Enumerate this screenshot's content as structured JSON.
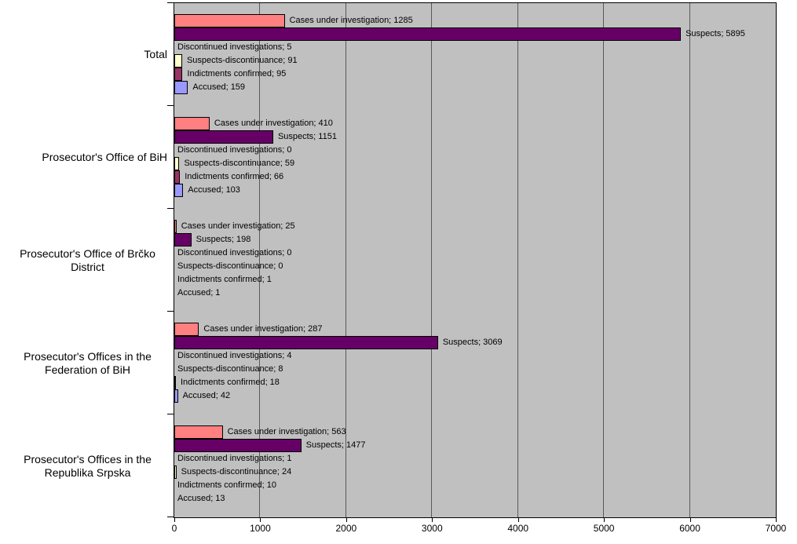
{
  "chart_data": {
    "type": "bar",
    "orientation": "horizontal",
    "title": "",
    "xlabel": "",
    "ylabel": "",
    "xlim": [
      0,
      7000
    ],
    "x_ticks": [
      0,
      1000,
      2000,
      3000,
      4000,
      5000,
      6000,
      7000
    ],
    "grid": true,
    "legend_position": "none",
    "plot_bg_color": "#C0C0C0",
    "gridline_color": "#595959",
    "bar_border_color": "#000000",
    "data_label_separator": "; ",
    "categories": [
      "Total",
      "Prosecutor's Office of BiH",
      "Prosecutor's Office of Brčko District",
      "Prosecutor's Offices in the Federation of BiH",
      "Prosecutor's Offices in the Republika Srpska"
    ],
    "series": [
      {
        "name": "Cases under investigation",
        "color": "#FF8080",
        "values": [
          1285,
          410,
          25,
          287,
          563
        ]
      },
      {
        "name": "Suspects",
        "color": "#660066",
        "values": [
          5895,
          1151,
          198,
          3069,
          1477
        ]
      },
      {
        "name": "Discontinued investigations",
        "color": "#CCFFFF",
        "values": [
          5,
          0,
          0,
          4,
          1
        ]
      },
      {
        "name": "Suspects-discontinuance",
        "color": "#FFFFCC",
        "values": [
          91,
          59,
          0,
          8,
          24
        ]
      },
      {
        "name": "Indictments confirmed",
        "color": "#993366",
        "values": [
          95,
          66,
          1,
          18,
          10
        ]
      },
      {
        "name": "Accused",
        "color": "#9999FF",
        "values": [
          159,
          103,
          1,
          42,
          13
        ]
      }
    ],
    "data_labels": {
      "Total": [
        "Cases under investigation; 1285",
        "Suspects; 5895",
        "Discontinued investigations; 5",
        "Suspects-discontinuance; 91",
        "Indictments confirmed; 95",
        "Accused; 159"
      ],
      "Prosecutor's Office of BiH": [
        "Cases under investigation; 410",
        "Suspects; 1151",
        "Discontinued investigations; 0",
        "Suspects-discontinuance; 59",
        "Indictments confirmed; 66",
        "Accused; 103"
      ],
      "Prosecutor's Office of Brčko District": [
        "Cases under investigation; 25",
        "Suspects; 198",
        "Discontinued investigations; 0",
        "Suspects-discontinuance; 0",
        "Indictments confirmed; 1",
        "Accused; 1"
      ],
      "Prosecutor's Offices in the Federation of BiH": [
        "Cases under investigation; 287",
        "Suspects; 3069",
        "Discontinued investigations; 4",
        "Suspects-discontinuance; 8",
        "Indictments confirmed; 18",
        "Accused; 42"
      ],
      "Prosecutor's Offices in the Republika Srpska": [
        "Cases under investigation; 563",
        "Suspects; 1477",
        "Discontinued investigations; 1",
        "Suspects-discontinuance; 24",
        "Indictments confirmed; 10",
        "Accused; 13"
      ]
    }
  }
}
